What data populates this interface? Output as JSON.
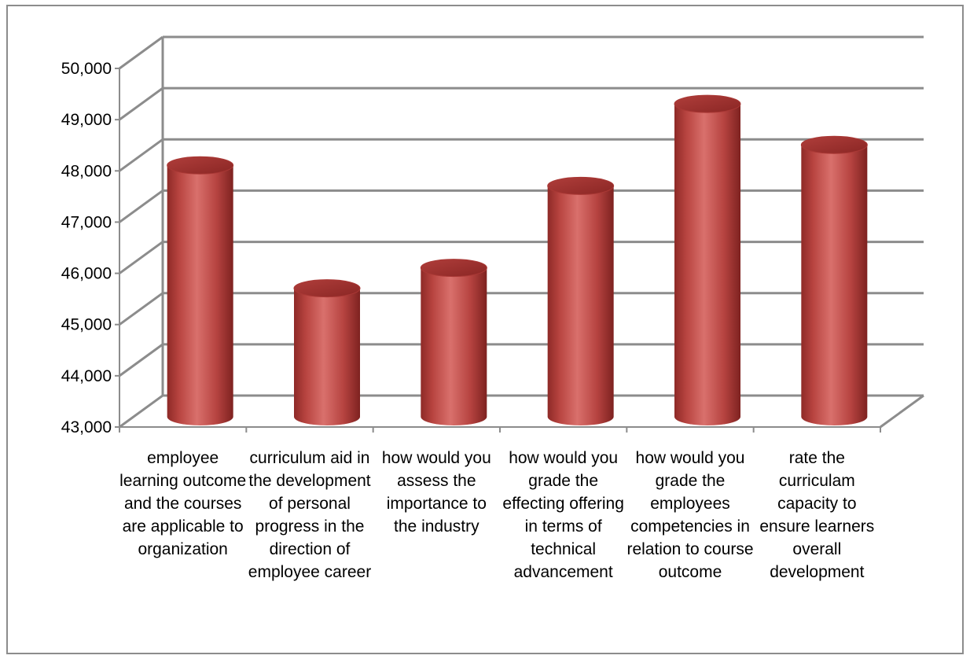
{
  "chart_data": {
    "type": "bar",
    "title": "",
    "xlabel": "",
    "ylabel": "",
    "categories": [
      "employee learning outcome and the courses are applicable to organization",
      "curriculum aid in the development of personal progress in the direction of employee career",
      "how would you assess the importance to the industry",
      "how would you grade the effecting offering in terms of technical advancement",
      "how would you grade the employees competencies in relation to course outcome",
      "rate the curriculam capacity to ensure learners overall development"
    ],
    "values": [
      48000,
      45600,
      46000,
      47600,
      49200,
      48400
    ],
    "ylim": [
      43000,
      50000
    ],
    "yticks": [
      "43,000",
      "44,000",
      "45,000",
      "46,000",
      "47,000",
      "48,000",
      "49,000",
      "50,000"
    ],
    "grid": true,
    "legend": "none",
    "bar_shape": "3d-cylinder",
    "bar_color": "#c0504d"
  }
}
